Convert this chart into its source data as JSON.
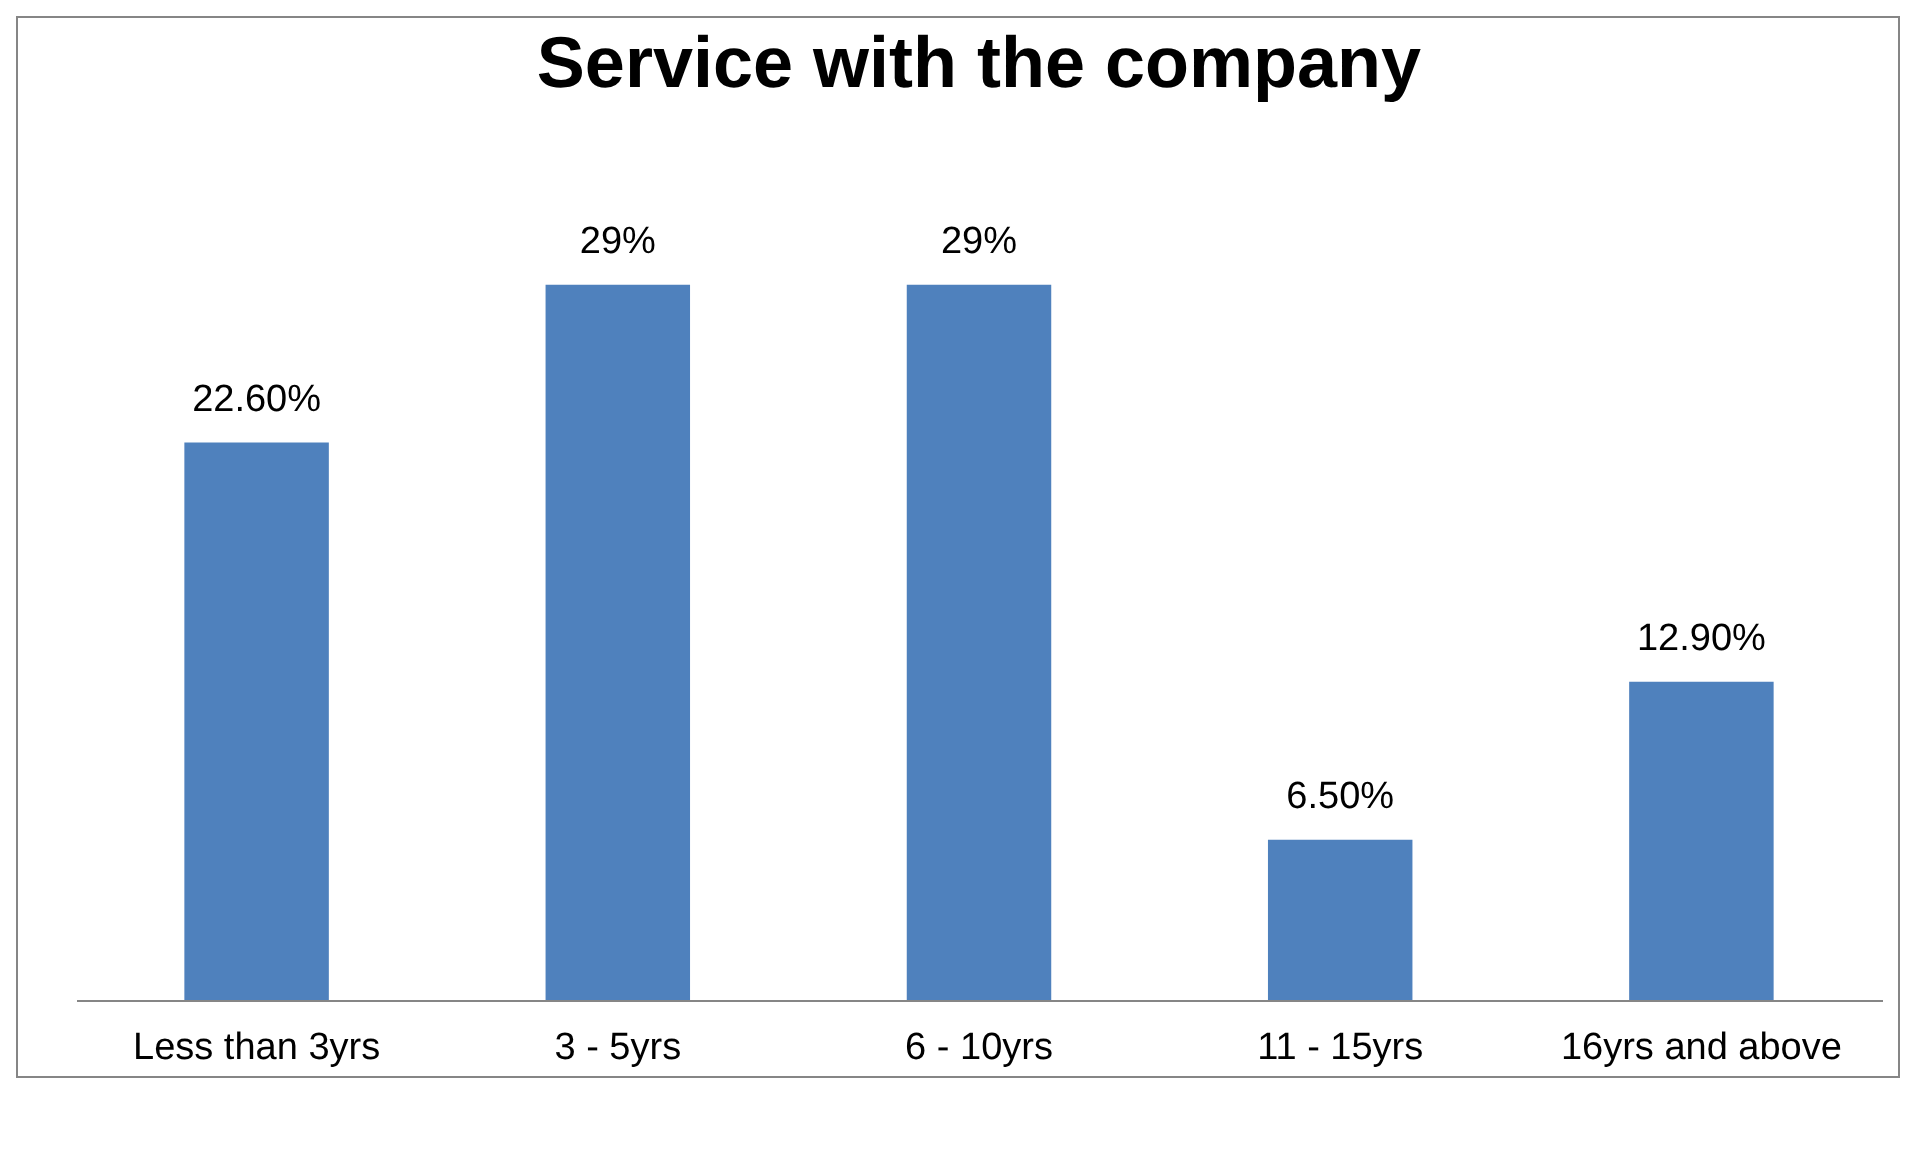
{
  "chart_data": {
    "type": "bar",
    "title": "Service with the company",
    "categories": [
      "Less than 3yrs",
      "3 - 5yrs",
      "6 - 10yrs",
      "11 - 15yrs",
      "16yrs and above"
    ],
    "values": [
      22.6,
      29,
      29,
      6.5,
      12.9
    ],
    "value_labels": [
      "22.60%",
      "29%",
      "29%",
      "6.50%",
      "12.90%"
    ],
    "color": "#4f81bd"
  }
}
